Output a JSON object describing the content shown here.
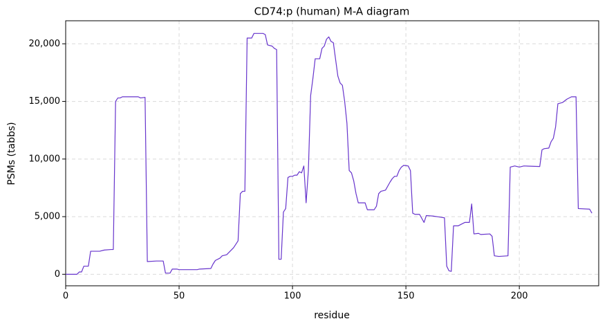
{
  "chart_data": {
    "type": "line",
    "title": "CD74:p (human) M-A diagram",
    "xlabel": "residue",
    "ylabel": "PSMs (tabbs)",
    "xlim": [
      0,
      235
    ],
    "ylim": [
      -1000,
      22000
    ],
    "xticks": [
      0,
      50,
      100,
      150,
      200
    ],
    "yticks": [
      0,
      {
        "value": 5000,
        "label": "5,000"
      },
      {
        "value": 10000,
        "label": "10,000"
      },
      {
        "value": 15000,
        "label": "15,000"
      },
      {
        "value": 20000,
        "label": "20,000"
      }
    ],
    "grid": true,
    "x": [
      0,
      5,
      6,
      7,
      8,
      10,
      11,
      15,
      17,
      20,
      21,
      22,
      23,
      24,
      25,
      32,
      33,
      35,
      36,
      40,
      43,
      44,
      46,
      47,
      49,
      50,
      58,
      59,
      64,
      65,
      66,
      68,
      69,
      71,
      72,
      74,
      76,
      77,
      78,
      79,
      80,
      82,
      83,
      87,
      88,
      89,
      91,
      92,
      93,
      94,
      95,
      96,
      97,
      98,
      99,
      100,
      101,
      102,
      103,
      104,
      105,
      106,
      107,
      108,
      109,
      110,
      112,
      113,
      114,
      115,
      116,
      117,
      118,
      120,
      121,
      122,
      123,
      124,
      125,
      126,
      127,
      128,
      129,
      132,
      133,
      136,
      137,
      138,
      139,
      141,
      143,
      144,
      145,
      146,
      147,
      148,
      149,
      151,
      152,
      153,
      154,
      156,
      158,
      159,
      162,
      167,
      168,
      169,
      170,
      171,
      173,
      175,
      176,
      178,
      179,
      180,
      182,
      183,
      187,
      188,
      189,
      191,
      195,
      196,
      198,
      200,
      202,
      209,
      210,
      211,
      213,
      214,
      215,
      216,
      217,
      219,
      221,
      223,
      225,
      226,
      231,
      232
    ],
    "series": [
      {
        "name": "PSMs",
        "color": "#6633cc",
        "values": [
          0,
          0,
          200,
          200,
          700,
          700,
          2000,
          2000,
          2100,
          2150,
          2150,
          15000,
          15300,
          15300,
          15400,
          15400,
          15300,
          15350,
          1100,
          1150,
          1150,
          100,
          100,
          450,
          450,
          400,
          400,
          450,
          500,
          900,
          1200,
          1400,
          1600,
          1700,
          1900,
          2300,
          2900,
          7000,
          7200,
          7200,
          20500,
          20500,
          20900,
          20900,
          20800,
          19900,
          19800,
          19600,
          19500,
          1300,
          1300,
          5400,
          5700,
          8400,
          8500,
          8500,
          8600,
          8600,
          8900,
          8800,
          9400,
          6200,
          9000,
          15500,
          17000,
          18700,
          18700,
          19600,
          19800,
          20400,
          20600,
          20200,
          20100,
          17200,
          16600,
          16400,
          15000,
          13100,
          9000,
          8800,
          8100,
          7000,
          6200,
          6200,
          5600,
          5600,
          5900,
          7000,
          7200,
          7300,
          8000,
          8300,
          8500,
          8500,
          9000,
          9300,
          9450,
          9400,
          9000,
          5300,
          5200,
          5200,
          4500,
          5100,
          5050,
          4900,
          700,
          300,
          250,
          4200,
          4200,
          4400,
          4500,
          4500,
          6100,
          3500,
          3550,
          3450,
          3500,
          3300,
          1600,
          1550,
          1600,
          9300,
          9400,
          9300,
          9400,
          9350,
          10800,
          10900,
          10950,
          11500,
          11800,
          12800,
          14800,
          14900,
          15200,
          15400,
          15400,
          5700,
          5650,
          5300
        ]
      }
    ]
  }
}
